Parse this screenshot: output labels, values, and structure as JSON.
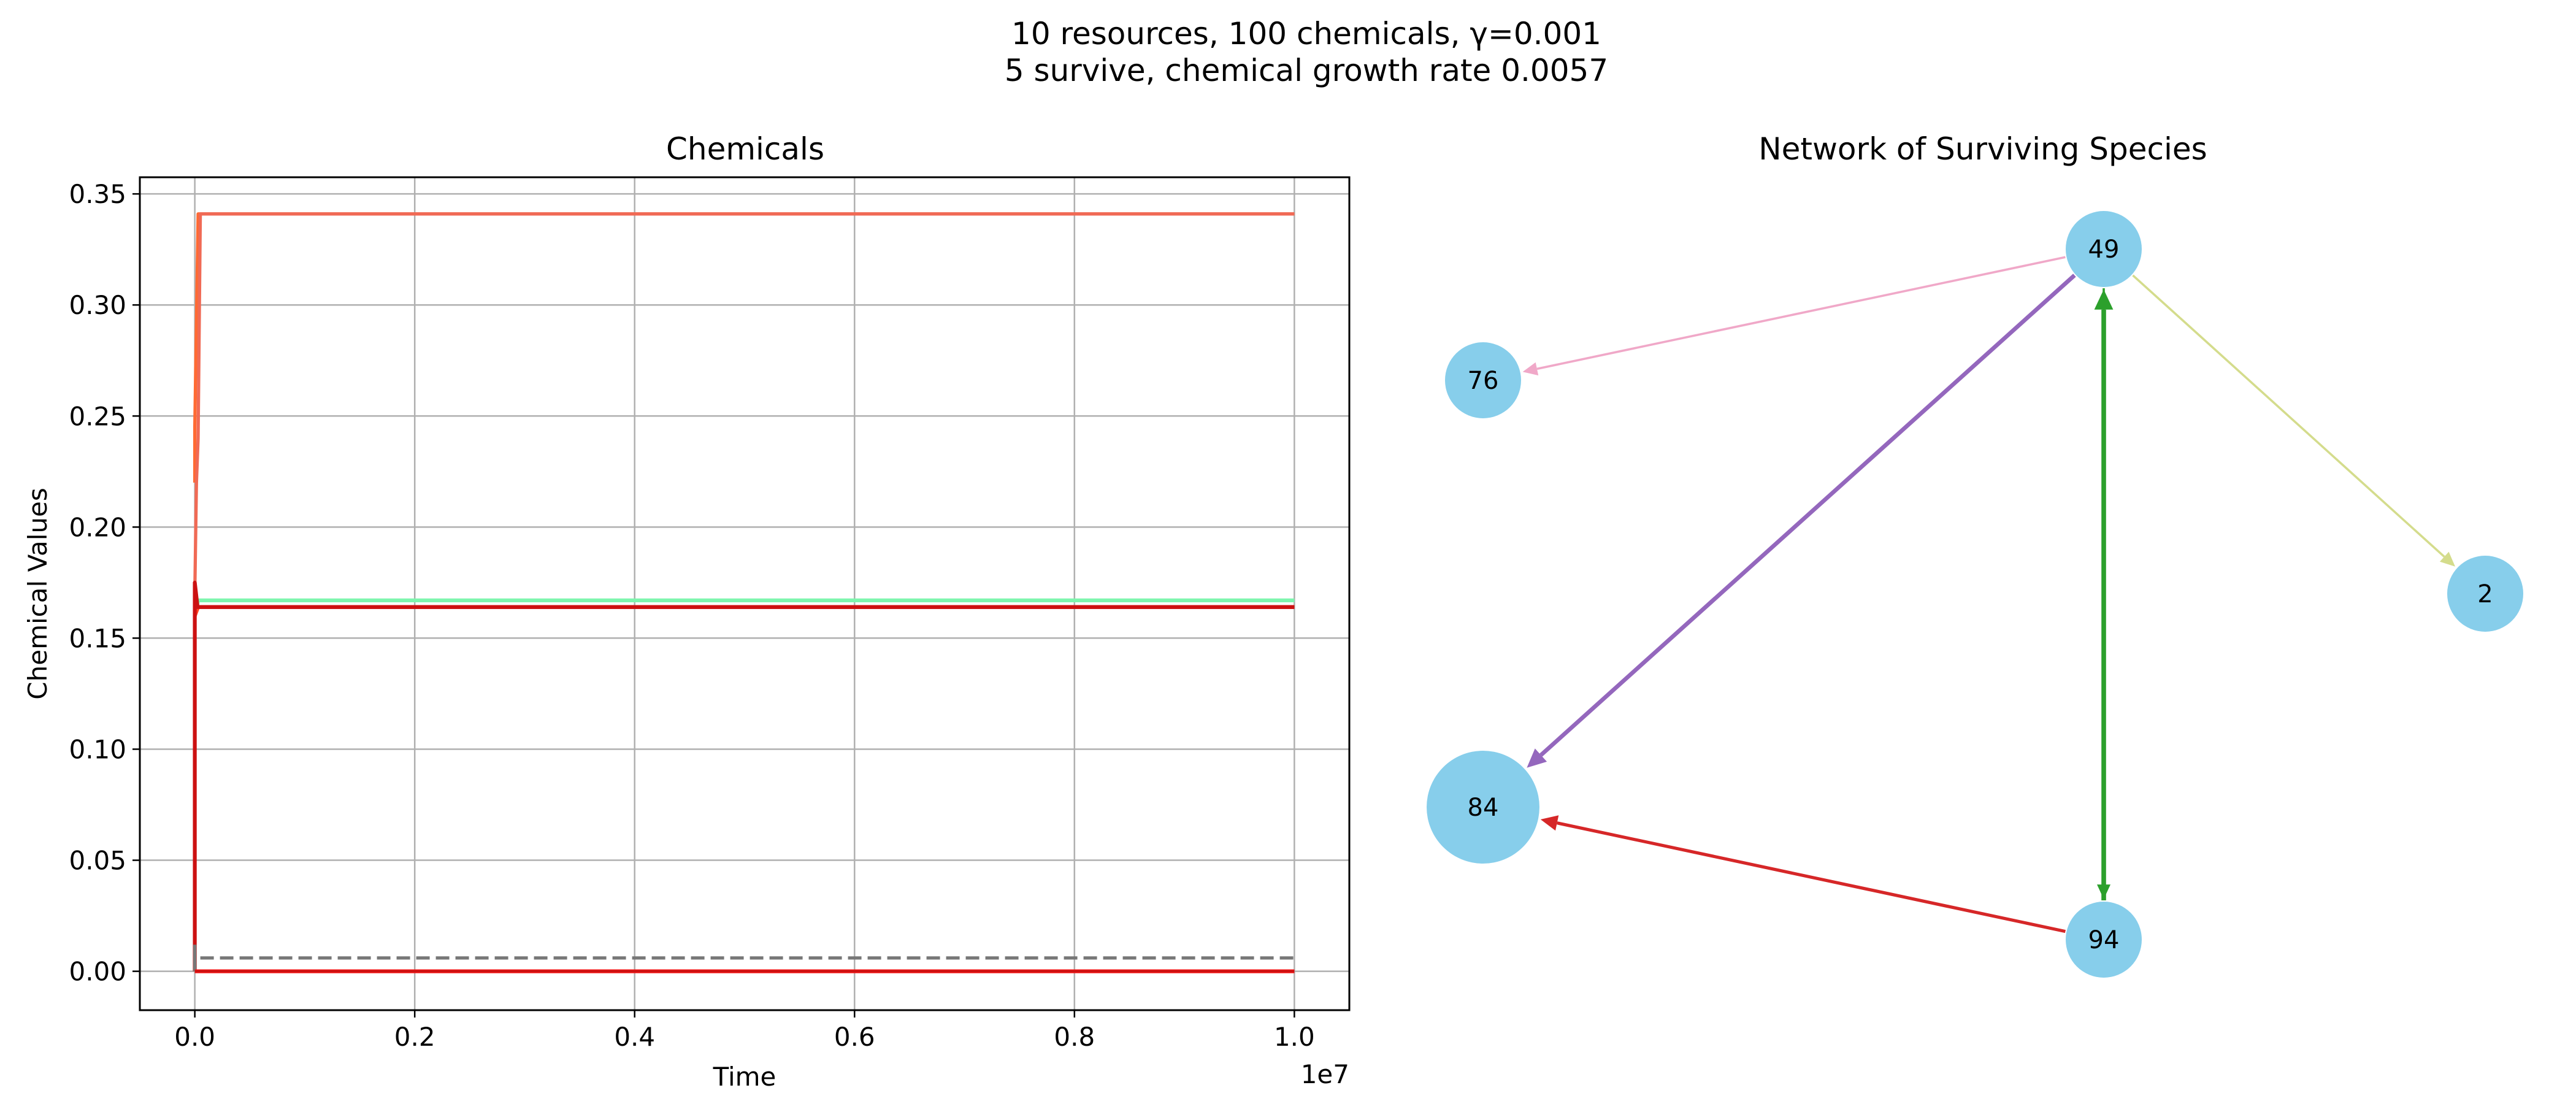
{
  "figure": {
    "suptitle_line1": "10 resources, 100 chemicals, γ=0.001",
    "suptitle_line2": "5 survive, chemical growth rate 0.0057"
  },
  "chart_data": [
    {
      "type": "line",
      "title": "Chemicals",
      "xlabel": "Time",
      "ylabel": "Chemical Values",
      "x_offset_label": "1e7",
      "xlim": [
        -500000,
        10500000
      ],
      "ylim": [
        -0.0175,
        0.3575
      ],
      "x_ticks": [
        0,
        2000000,
        4000000,
        6000000,
        8000000,
        10000000
      ],
      "x_tick_labels": [
        "0.0",
        "0.2",
        "0.4",
        "0.6",
        "0.8",
        "1.0"
      ],
      "y_ticks": [
        0,
        0.05,
        0.1,
        0.15,
        0.2,
        0.25,
        0.3,
        0.35
      ],
      "y_tick_labels": [
        "0.00",
        "0.05",
        "0.10",
        "0.15",
        "0.20",
        "0.25",
        "0.30",
        "0.35"
      ],
      "grid": true,
      "series": [
        {
          "color": "#ff6a33",
          "width": 2.2,
          "dashed": false,
          "points": [
            [
              0,
              0.22
            ],
            [
              0,
              0.245
            ],
            [
              30000,
              0.341
            ],
            [
              10000000,
              0.341
            ]
          ]
        },
        {
          "color": "#f06a55",
          "width": 2.2,
          "dashed": false,
          "points": [
            [
              0,
              0.17
            ],
            [
              15000,
              0.22
            ],
            [
              30000,
              0.24
            ],
            [
              50000,
              0.341
            ],
            [
              10000000,
              0.341
            ]
          ]
        },
        {
          "color": "#7ef5ae",
          "width": 2.6,
          "dashed": false,
          "points": [
            [
              0,
              0.16
            ],
            [
              30000,
              0.167
            ],
            [
              10000000,
              0.167
            ]
          ]
        },
        {
          "color": "#ff4422",
          "width": 2.6,
          "dashed": false,
          "points": [
            [
              0,
              0.16
            ],
            [
              30000,
              0.164
            ],
            [
              10000000,
              0.164
            ]
          ]
        },
        {
          "color": "#cc1111",
          "width": 2.6,
          "dashed": false,
          "points": [
            [
              0,
              0.0
            ],
            [
              0,
              0.175
            ],
            [
              25000,
              0.164
            ],
            [
              10000000,
              0.164
            ]
          ]
        },
        {
          "color": "#777777",
          "width": 2.2,
          "dashed": false,
          "points": [
            [
              0,
              0.012
            ],
            [
              0,
              0.0
            ]
          ]
        },
        {
          "color": "#ff1a1a",
          "width": 2.6,
          "dashed": false,
          "points": [
            [
              0,
              0.0
            ],
            [
              10000000,
              0.0
            ]
          ]
        },
        {
          "color": "#cc1111",
          "width": 1.6,
          "dashed": false,
          "points": [
            [
              0,
              0.0
            ],
            [
              10000000,
              0.0
            ]
          ]
        },
        {
          "color": "#777777",
          "width": 2.2,
          "dashed": true,
          "points": [
            [
              50000,
              0.006
            ],
            [
              10000000,
              0.006
            ]
          ]
        }
      ]
    },
    {
      "type": "network",
      "title": "Network of Surviving Species",
      "node_color": "#87ceeb",
      "nodes": [
        {
          "id": "49",
          "label": "49",
          "size": 1
        },
        {
          "id": "76",
          "label": "76",
          "size": 1
        },
        {
          "id": "2",
          "label": "2",
          "size": 1
        },
        {
          "id": "84",
          "label": "84",
          "size": 2.2
        },
        {
          "id": "94",
          "label": "94",
          "size": 1
        }
      ],
      "edges": [
        {
          "from": "49",
          "to": "76",
          "color": "#f0a8c8",
          "weight": 1
        },
        {
          "from": "49",
          "to": "2",
          "color": "#d4dc8c",
          "weight": 1
        },
        {
          "from": "49",
          "to": "84",
          "color": "#9467bd",
          "weight": 3
        },
        {
          "from": "94",
          "to": "49",
          "color": "#2ca02c",
          "weight": 3.5
        },
        {
          "from": "49",
          "to": "94",
          "color": "#2ca02c",
          "weight": 1
        },
        {
          "from": "94",
          "to": "84",
          "color": "#d62728",
          "weight": 2
        }
      ]
    }
  ]
}
